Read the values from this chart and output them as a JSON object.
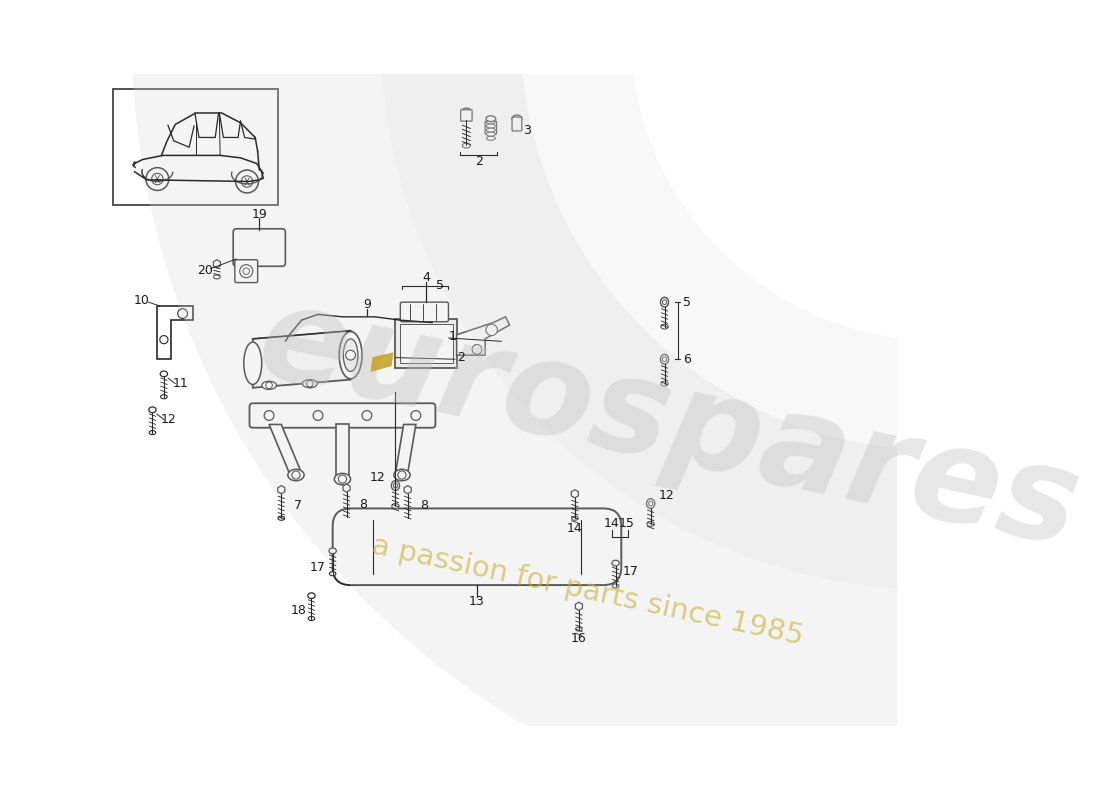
{
  "bg_color": "#ffffff",
  "line_color": "#2a2a2a",
  "accent_color": "#c8a020",
  "watermark_text1": "eurospares",
  "watermark_text2": "a passion for parts since 1985",
  "wm_color1": "#c8c8c8",
  "wm_color2": "#c8b030",
  "fig_w": 11.0,
  "fig_h": 8.0,
  "dpi": 100
}
